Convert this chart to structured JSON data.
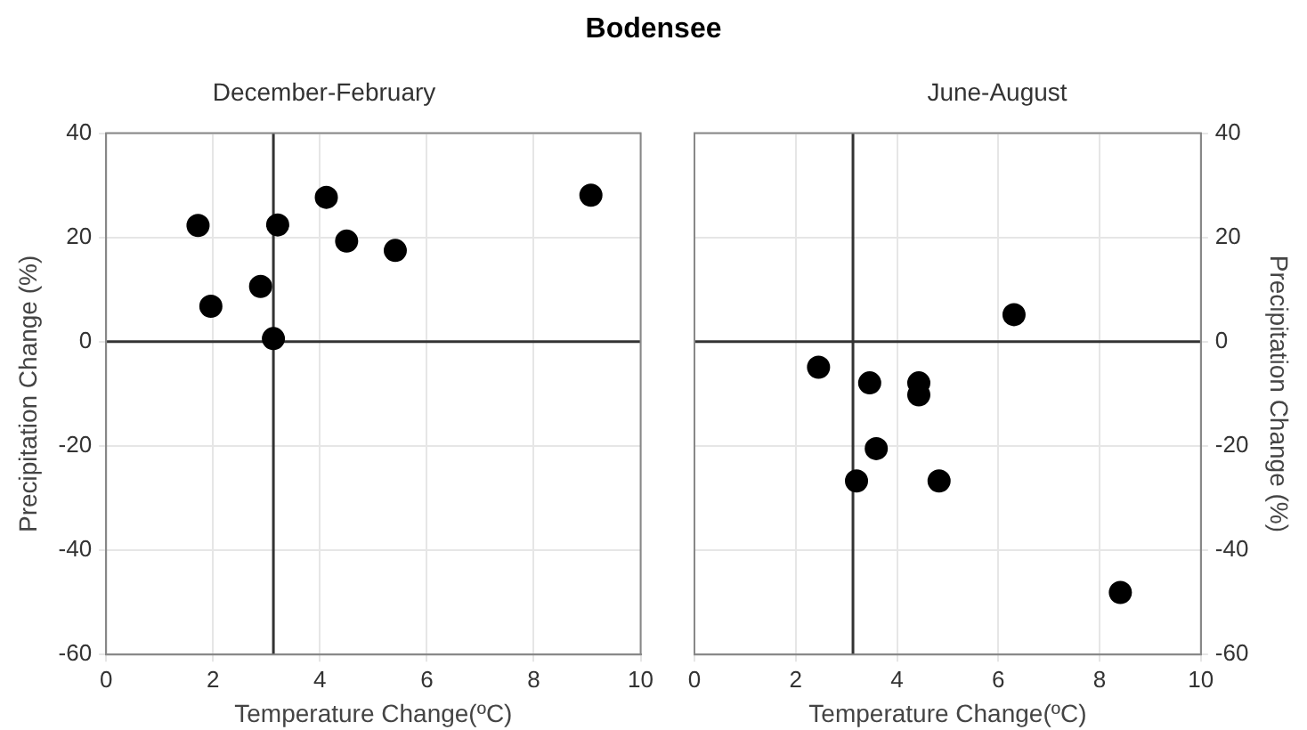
{
  "chart_data": [
    {
      "type": "scatter",
      "title": "Bodensee",
      "subtitle": "December-February",
      "xlabel": "Temperature Change(ºC)",
      "ylabel": "Precipitation Change (%)",
      "xlim": [
        0,
        10
      ],
      "xticks": [
        0,
        2,
        4,
        6,
        8,
        10
      ],
      "ylim": [
        -60,
        40
      ],
      "yticks": [
        -60,
        -40,
        -20,
        0,
        20,
        40
      ],
      "grid": true,
      "marker": "circle",
      "series": [
        {
          "color": "#000000",
          "x": [
            1.72,
            1.96,
            2.89,
            3.13,
            3.21,
            4.12,
            4.5,
            5.41,
            9.07
          ],
          "values": [
            22.3,
            6.8,
            10.6,
            0.6,
            22.4,
            27.7,
            19.3,
            17.5,
            28.1
          ]
        }
      ],
      "ref_lines": [
        {
          "axis": "x",
          "value": 3.13,
          "color": "#333333"
        },
        {
          "axis": "y",
          "value": 0,
          "color": "#333333"
        }
      ]
    },
    {
      "type": "scatter",
      "subtitle": "June-August",
      "xlabel": "Temperature Change(ºC)",
      "y2label": "Precipitation Change (%)",
      "xlim": [
        0,
        10
      ],
      "xticks": [
        0,
        2,
        4,
        6,
        8,
        10
      ],
      "y2lim": [
        -60,
        40
      ],
      "y2ticks": [
        -60,
        -40,
        -20,
        0,
        20,
        40
      ],
      "grid": true,
      "marker": "circle",
      "series": [
        {
          "color": "#000000",
          "axis": "y2",
          "x": [
            2.45,
            3.46,
            4.43,
            4.43,
            3.59,
            3.2,
            4.83,
            6.31,
            8.41
          ],
          "values": [
            -4.9,
            -7.9,
            -7.9,
            -10.2,
            -20.5,
            -26.7,
            -26.7,
            5.2,
            -48.1
          ]
        }
      ],
      "ref_lines": [
        {
          "axis": "x",
          "value": 3.13,
          "color": "#333333"
        },
        {
          "axis": "y2",
          "value": 0,
          "color": "#333333"
        }
      ]
    }
  ]
}
